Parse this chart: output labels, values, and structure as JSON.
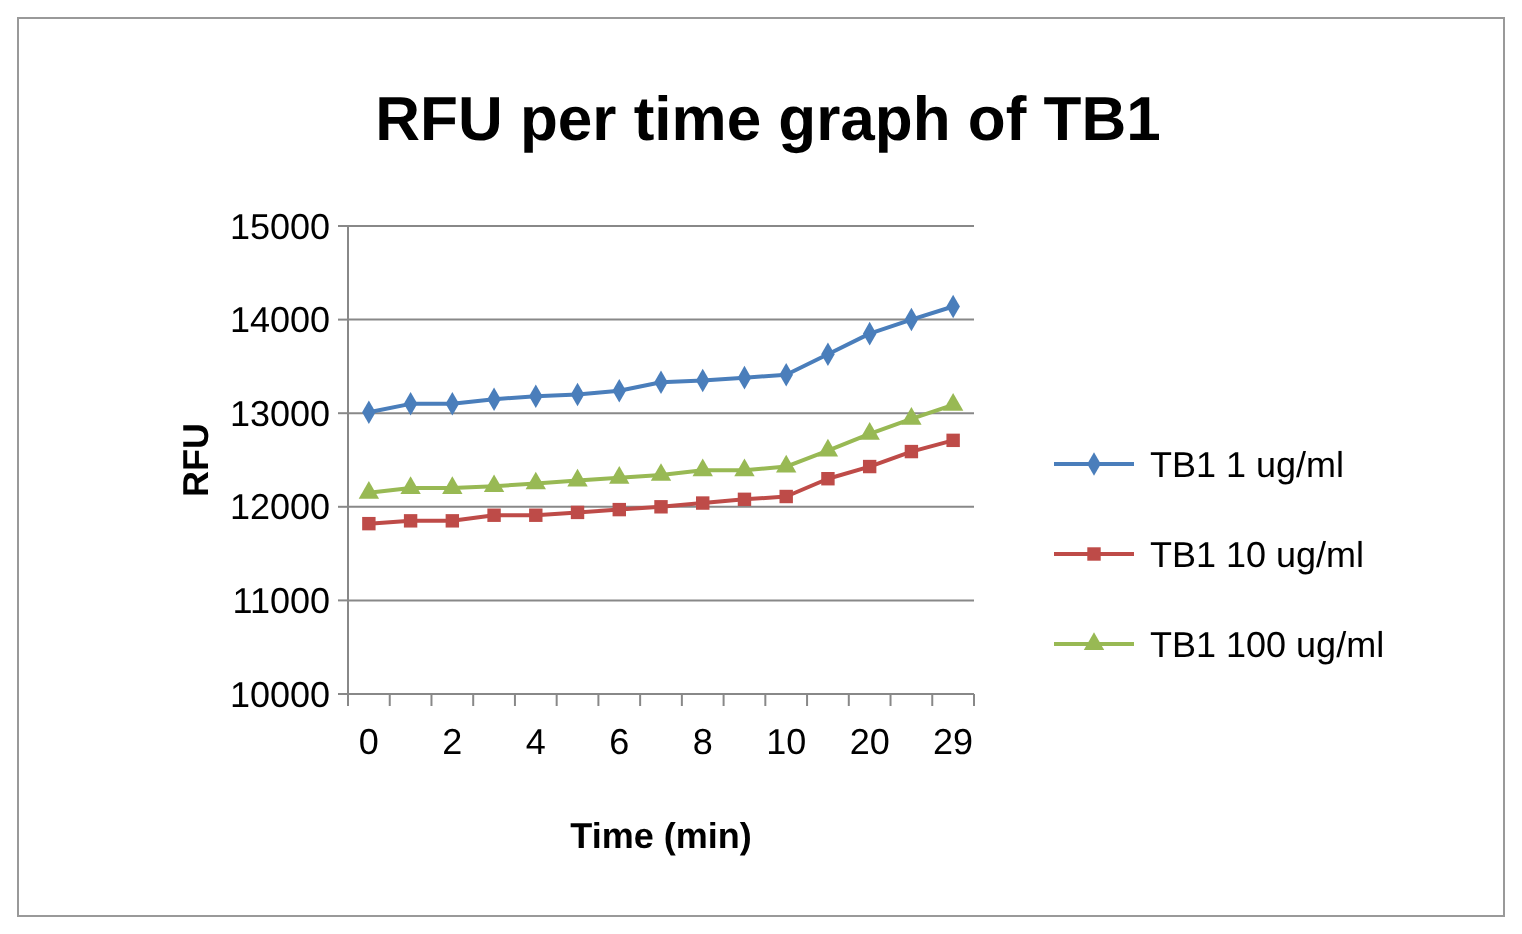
{
  "chart_data": {
    "type": "line",
    "title": "RFU per time graph of TB1",
    "xlabel": "Time (min)",
    "ylabel": "RFU",
    "categories": [
      "0",
      null,
      "2",
      null,
      "4",
      null,
      "6",
      null,
      "8",
      null,
      "10",
      null,
      "20",
      null,
      "29"
    ],
    "series": [
      {
        "name": "TB1 1 ug/ml",
        "color": "#4a7ebb",
        "marker": "diamond",
        "values": [
          13010,
          13100,
          13100,
          13150,
          13180,
          13200,
          13240,
          13330,
          13350,
          13380,
          13410,
          13630,
          13850,
          14000,
          14140
        ]
      },
      {
        "name": "TB1 10 ug/ml",
        "color": "#be4b48",
        "marker": "square",
        "values": [
          11820,
          11850,
          11850,
          11910,
          11910,
          11940,
          11970,
          12000,
          12040,
          12080,
          12110,
          12300,
          12430,
          12590,
          12710
        ]
      },
      {
        "name": "TB1 100 ug/ml",
        "color": "#98b954",
        "marker": "triangle",
        "values": [
          12150,
          12200,
          12200,
          12220,
          12250,
          12280,
          12310,
          12340,
          12390,
          12390,
          12430,
          12600,
          12780,
          12940,
          13090
        ]
      }
    ],
    "ylim": [
      10000,
      15000
    ],
    "yticks": [
      10000,
      11000,
      12000,
      13000,
      14000,
      15000
    ],
    "grid": "y",
    "legend": "right"
  }
}
